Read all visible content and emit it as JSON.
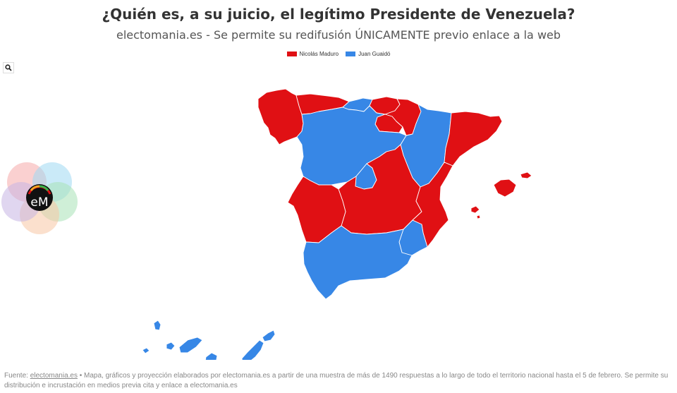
{
  "header": {
    "title": "¿Quién es, a su juicio, el legítimo Presidente de Venezuela?",
    "subtitle": "electomania.es - Se permite su redifusión ÚNICAMENTE previo enlace a la web"
  },
  "legend": [
    {
      "label": "Nicolás Maduro",
      "color": "#e01014"
    },
    {
      "label": "Juan Guaidó",
      "color": "#3787e6"
    }
  ],
  "toolbar": {
    "zoom_icon": "search-icon"
  },
  "logo": {
    "text": "eM"
  },
  "map": {
    "regions": [
      {
        "name": "Galicia",
        "winner": "Nicolás Maduro"
      },
      {
        "name": "Asturias",
        "winner": "Nicolás Maduro"
      },
      {
        "name": "Cantabria",
        "winner": "Juan Guaidó"
      },
      {
        "name": "País Vasco",
        "winner": "Nicolás Maduro"
      },
      {
        "name": "Navarra",
        "winner": "Nicolás Maduro"
      },
      {
        "name": "La Rioja",
        "winner": "Nicolás Maduro"
      },
      {
        "name": "Aragón",
        "winner": "Juan Guaidó"
      },
      {
        "name": "Cataluña",
        "winner": "Nicolás Maduro"
      },
      {
        "name": "Castilla y León",
        "winner": "Juan Guaidó"
      },
      {
        "name": "Madrid",
        "winner": "Juan Guaidó"
      },
      {
        "name": "Castilla-La Mancha",
        "winner": "Nicolás Maduro"
      },
      {
        "name": "Extremadura",
        "winner": "Nicolás Maduro"
      },
      {
        "name": "Comunidad Valenciana",
        "winner": "Nicolás Maduro"
      },
      {
        "name": "Islas Baleares",
        "winner": "Nicolás Maduro"
      },
      {
        "name": "Murcia",
        "winner": "Juan Guaidó"
      },
      {
        "name": "Andalucía",
        "winner": "Juan Guaidó"
      },
      {
        "name": "Islas Canarias",
        "winner": "Juan Guaidó"
      }
    ]
  },
  "footer": {
    "prefix": "Fuente: ",
    "link": "electomania.es",
    "text": " • Mapa, gráficos y proyección elaborados por electomania.es a partir de una muestra de más de 1490 respuestas a lo largo de todo el territorio nacional hasta el 5 de febrero. Se permite su distribución e incrustación en medios previa cita y enlace a electomania.es"
  }
}
